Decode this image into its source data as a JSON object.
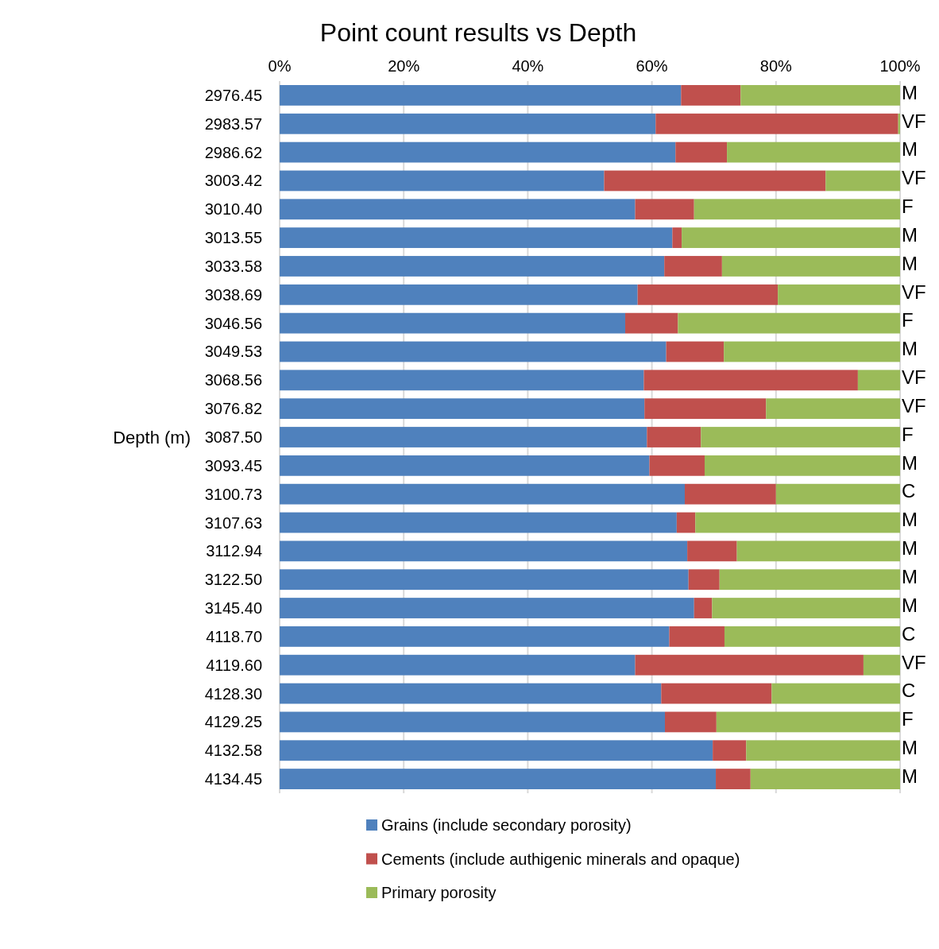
{
  "chart_data": {
    "type": "bar",
    "orientation": "horizontal",
    "stacked": true,
    "title": "Point count results vs Depth",
    "ylabel": "Depth (m)",
    "categories": [
      "2976.45",
      "2983.57",
      "2986.62",
      "3003.42",
      "3010.40",
      "3013.55",
      "3033.58",
      "3038.69",
      "3046.56",
      "3049.53",
      "3068.56",
      "3076.82",
      "3087.50",
      "3093.45",
      "3100.73",
      "3107.63",
      "3112.94",
      "3122.50",
      "3145.40",
      "4118.70",
      "4119.60",
      "4128.30",
      "4129.25",
      "4132.58",
      "4134.45"
    ],
    "series": [
      {
        "name": "Grains (include secondary porosity)",
        "color": "#4f81bd",
        "values": [
          64.7,
          60.6,
          63.8,
          52.3,
          57.3,
          63.3,
          62.0,
          57.7,
          55.7,
          62.3,
          58.7,
          58.8,
          59.2,
          59.6,
          65.3,
          64.0,
          65.7,
          65.9,
          66.8,
          62.8,
          57.3,
          61.5,
          62.1,
          69.8,
          70.3
        ]
      },
      {
        "name": "Cements (include authigenic minerals and opaque)",
        "color": "#c0504d",
        "values": [
          9.6,
          39.1,
          8.3,
          35.7,
          9.5,
          1.5,
          9.3,
          22.6,
          8.5,
          9.3,
          34.5,
          19.6,
          8.7,
          8.9,
          14.7,
          3.0,
          8.0,
          5.0,
          2.9,
          8.9,
          36.8,
          17.8,
          8.3,
          5.4,
          5.6
        ]
      },
      {
        "name": "Primary porosity",
        "color": "#9bbb59",
        "values": [
          25.7,
          0.3,
          27.9,
          12.0,
          33.2,
          35.2,
          28.7,
          19.7,
          35.8,
          28.4,
          6.8,
          21.6,
          32.1,
          31.5,
          20.0,
          33.0,
          26.3,
          29.1,
          30.3,
          28.3,
          5.9,
          20.7,
          29.6,
          24.8,
          24.1
        ]
      }
    ],
    "xlim": [
      0,
      100
    ],
    "xticks": [
      {
        "value": 0,
        "label": "0%"
      },
      {
        "value": 20,
        "label": "20%"
      },
      {
        "value": 40,
        "label": "40%"
      },
      {
        "value": 60,
        "label": "60%"
      },
      {
        "value": 80,
        "label": "80%"
      },
      {
        "value": 100,
        "label": "100%"
      }
    ],
    "grid": "x",
    "legend": "bottom",
    "annotations": [
      "M",
      "VF",
      "M",
      "VF",
      "F",
      "M",
      "M",
      "VF",
      "F",
      "M",
      "VF",
      "VF",
      "F",
      "M",
      "C",
      "M",
      "M",
      "M",
      "M",
      "C",
      "VF",
      "C",
      "F",
      "M",
      "M"
    ]
  }
}
